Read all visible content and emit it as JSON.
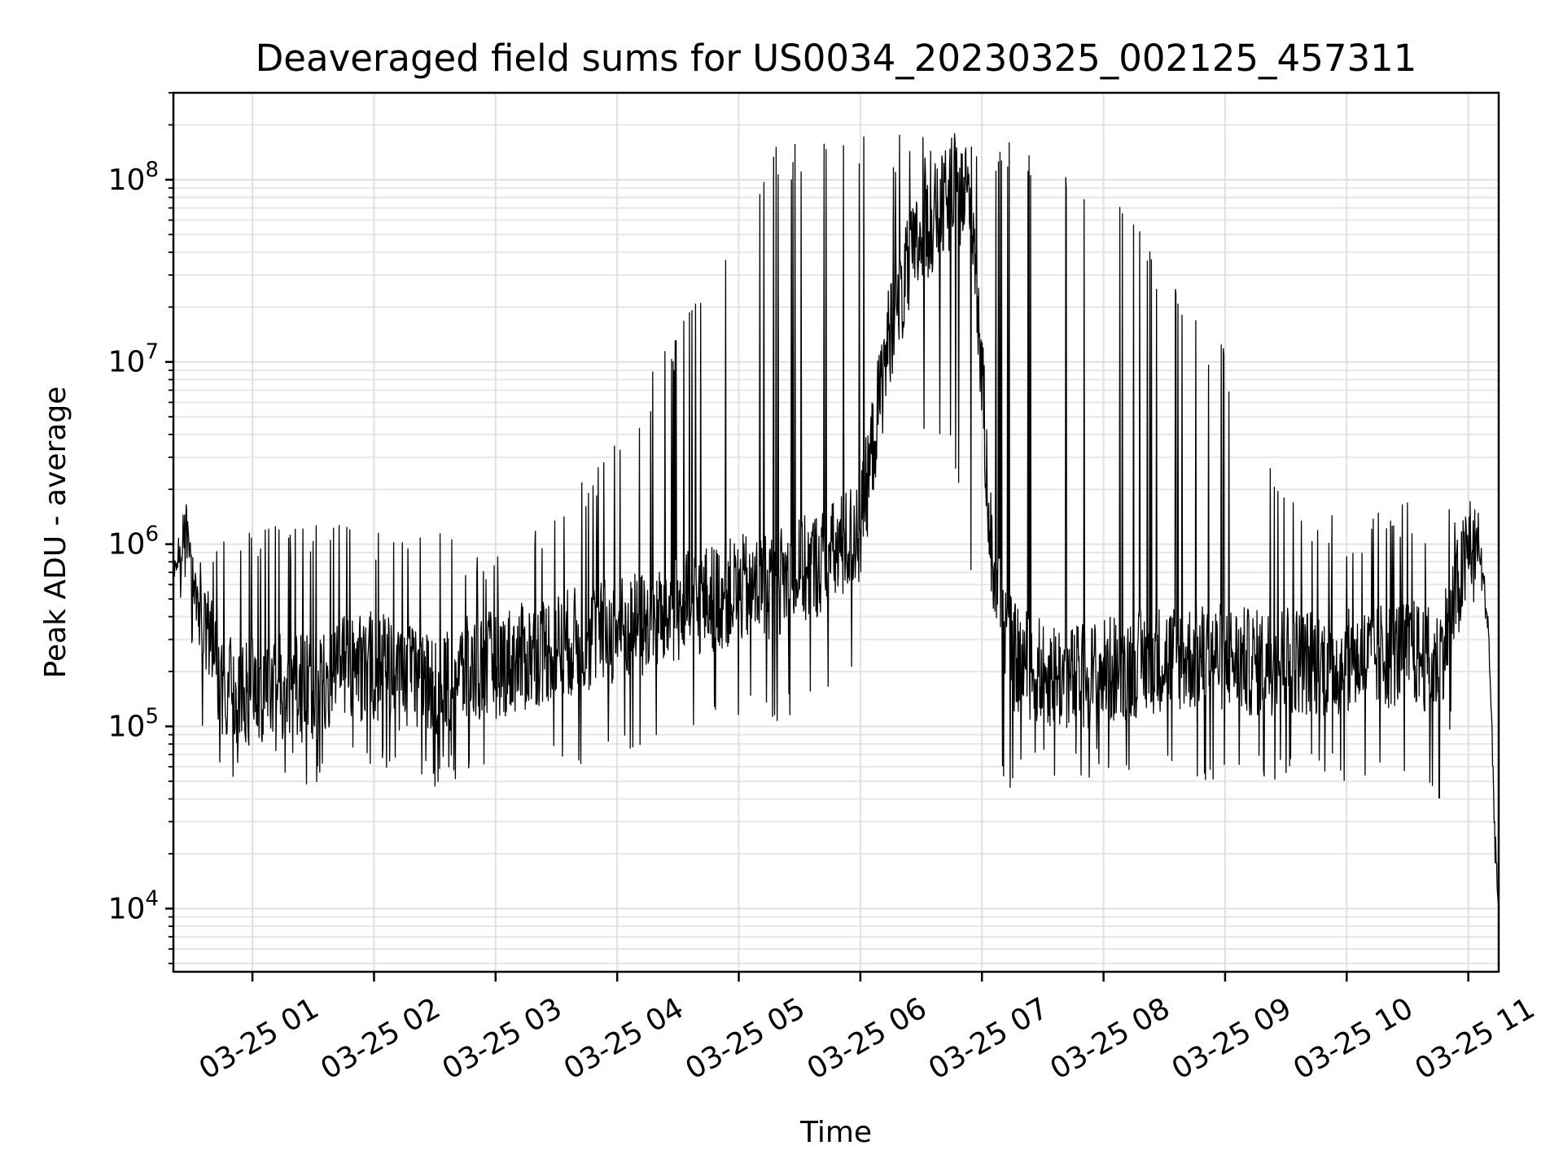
{
  "chart_data": {
    "type": "line",
    "title": "Deaveraged field sums for US0034_20230325_002125_457311",
    "xlabel": "Time",
    "ylabel": "Peak ADU - average",
    "yscale": "log",
    "xlim": [
      "03-25 00:21",
      "03-25 11:15"
    ],
    "ylim": [
      4500,
      300000000
    ],
    "grid": true,
    "line_color": "#000000",
    "x_ticks": [
      "03-25 01",
      "03-25 02",
      "03-25 03",
      "03-25 04",
      "03-25 05",
      "03-25 06",
      "03-25 07",
      "03-25 08",
      "03-25 09",
      "03-25 10",
      "03-25 11"
    ],
    "y_ticks": [
      {
        "base": "10",
        "exp": "4",
        "value": 10000
      },
      {
        "base": "10",
        "exp": "5",
        "value": 100000
      },
      {
        "base": "10",
        "exp": "6",
        "value": 1000000
      },
      {
        "base": "10",
        "exp": "7",
        "value": 10000000
      },
      {
        "base": "10",
        "exp": "8",
        "value": 100000000
      }
    ],
    "series": [
      {
        "x": [
          "03-25 00:21",
          "03-25 00:27",
          "03-25 00:33",
          "03-25 00:39",
          "03-25 00:45",
          "03-25 00:51",
          "03-25 00:57",
          "03-25 01:03",
          "03-25 01:15",
          "03-25 01:30",
          "03-25 01:45",
          "03-25 02:00",
          "03-25 02:15",
          "03-25 02:30",
          "03-25 02:45",
          "03-25 03:00",
          "03-25 03:15",
          "03-25 03:30",
          "03-25 03:45",
          "03-25 04:00",
          "03-25 04:15",
          "03-25 04:30",
          "03-25 04:45",
          "03-25 05:00",
          "03-25 05:15",
          "03-25 05:30",
          "03-25 05:45",
          "03-25 06:00",
          "03-25 06:15",
          "03-25 06:30",
          "03-25 06:45",
          "03-25 06:55",
          "03-25 07:05",
          "03-25 07:15",
          "03-25 07:30",
          "03-25 07:45",
          "03-25 08:00",
          "03-25 08:15",
          "03-25 08:30",
          "03-25 08:45",
          "03-25 09:00",
          "03-25 09:15",
          "03-25 09:30",
          "03-25 09:45",
          "03-25 10:00",
          "03-25 10:15",
          "03-25 10:30",
          "03-25 10:45",
          "03-25 11:00",
          "03-25 11:05",
          "03-25 11:10",
          "03-25 11:13",
          "03-25 11:15"
        ],
        "lower": [
          600000,
          900000,
          300000,
          150000,
          90000,
          80000,
          75000,
          80000,
          85000,
          80000,
          100000,
          110000,
          90000,
          85000,
          100000,
          110000,
          120000,
          140000,
          150000,
          170000,
          180000,
          220000,
          250000,
          280000,
          300000,
          350000,
          420000,
          600000,
          8000000,
          25000000,
          40000000,
          40000000,
          400000,
          120000,
          100000,
          90000,
          100000,
          110000,
          120000,
          120000,
          120000,
          110000,
          120000,
          110000,
          110000,
          120000,
          130000,
          110000,
          450000,
          700000,
          300000,
          20000,
          7000
        ],
        "upper": [
          800000,
          1700000,
          900000,
          700000,
          1200000,
          1300000,
          1300000,
          1300000,
          1300000,
          1300000,
          1300000,
          1300000,
          1300000,
          1300000,
          900000,
          1000000,
          1200000,
          1500000,
          2500000,
          4000000,
          8000000,
          15000000,
          30000000,
          80000000,
          150000000,
          170000000,
          175000000,
          180000000,
          180000000,
          180000000,
          180000000,
          180000000,
          170000000,
          160000000,
          150000000,
          120000000,
          90000000,
          60000000,
          30000000,
          20000000,
          12000000,
          5000000,
          2500000,
          1500000,
          1400000,
          1500000,
          1700000,
          1500000,
          2000000,
          1500000,
          400000,
          40000,
          12000
        ],
        "min": [
          500000,
          500000,
          110000,
          50000,
          45000,
          45000,
          50000,
          50000,
          50000,
          45000,
          50000,
          55000,
          45000,
          45000,
          50000,
          55000,
          55000,
          60000,
          60000,
          70000,
          75000,
          80000,
          90000,
          100000,
          100000,
          120000,
          150000,
          200000,
          1200000,
          4000000,
          3000000,
          600000,
          50000,
          45000,
          50000,
          50000,
          55000,
          55000,
          55000,
          50000,
          45000,
          50000,
          50000,
          50000,
          50000,
          45000,
          40000,
          35000,
          300000,
          400000,
          100000,
          10000,
          6000
        ]
      }
    ]
  }
}
